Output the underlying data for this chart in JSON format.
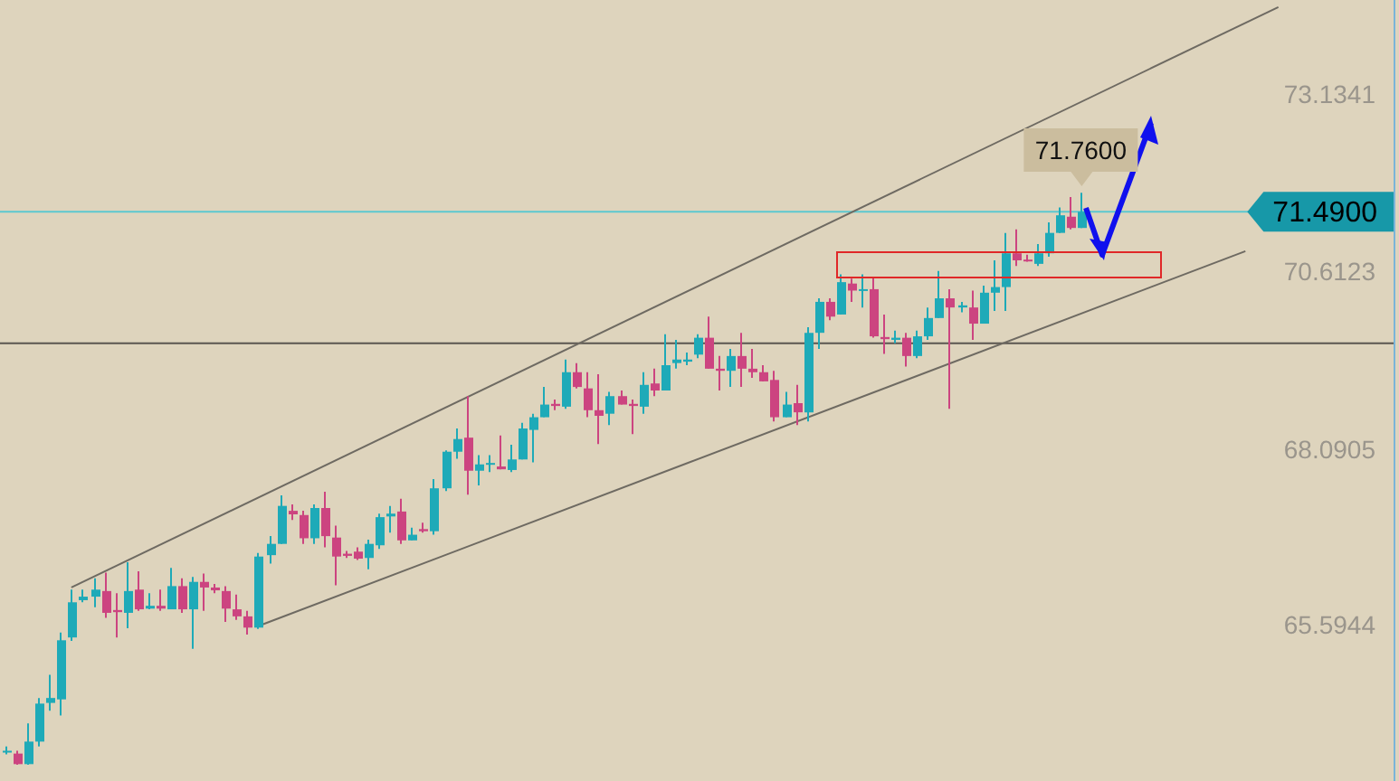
{
  "chart_data": {
    "type": "candlestick",
    "tick_labels": "y",
    "ylim": [
      63.4,
      74.5
    ],
    "yticks": [
      65.5944,
      68.0905,
      70.6123,
      73.1341
    ],
    "categories": [
      null,
      null,
      null,
      null,
      null,
      null,
      null,
      null,
      null,
      null,
      null,
      null,
      null,
      null,
      null,
      null,
      null,
      null,
      null,
      null,
      null,
      null,
      null,
      null,
      null,
      null,
      null,
      null,
      null,
      null,
      null,
      null,
      null,
      null,
      null,
      null,
      null,
      null,
      null,
      null,
      null,
      null,
      null,
      null,
      null,
      null,
      null,
      null,
      null,
      null,
      null,
      null,
      null,
      null,
      null,
      null,
      null,
      null,
      null,
      null,
      null,
      null,
      null,
      null,
      null,
      null,
      null,
      null,
      null,
      null,
      null,
      null,
      null,
      null,
      null,
      null,
      null,
      null,
      null,
      null,
      null,
      null,
      null,
      null,
      null,
      null,
      null,
      null,
      null,
      null,
      null,
      null,
      null,
      null,
      null,
      null,
      null,
      null,
      null,
      null,
      null,
      null,
      null,
      null,
      null,
      null,
      null,
      null,
      null,
      null,
      null,
      null,
      null,
      null,
      null,
      null,
      null,
      null,
      null,
      null,
      null,
      null,
      null,
      null,
      null,
      null,
      null
    ],
    "ohlc": [
      [
        63.83,
        63.89,
        63.78,
        63.83
      ],
      [
        63.79,
        63.83,
        63.63,
        63.64
      ],
      [
        63.64,
        64.22,
        63.63,
        63.96
      ],
      [
        63.96,
        64.58,
        63.89,
        64.5
      ],
      [
        64.51,
        64.91,
        64.4,
        64.58
      ],
      [
        64.56,
        65.51,
        64.33,
        65.4
      ],
      [
        65.44,
        66.12,
        65.39,
        65.94
      ],
      [
        65.97,
        66.12,
        65.94,
        66.02
      ],
      [
        66.02,
        66.28,
        65.87,
        66.12
      ],
      [
        66.1,
        66.36,
        65.72,
        65.79
      ],
      [
        65.83,
        66.07,
        65.44,
        65.8
      ],
      [
        65.79,
        66.51,
        65.57,
        66.1
      ],
      [
        66.12,
        66.38,
        65.82,
        65.84
      ],
      [
        65.85,
        66.07,
        65.84,
        65.89
      ],
      [
        65.89,
        66.12,
        65.82,
        65.85
      ],
      [
        65.84,
        66.43,
        65.84,
        66.17
      ],
      [
        66.17,
        66.28,
        65.79,
        65.84
      ],
      [
        65.84,
        66.3,
        65.28,
        66.23
      ],
      [
        66.23,
        66.35,
        65.82,
        66.15
      ],
      [
        66.15,
        66.2,
        66.07,
        66.11
      ],
      [
        66.1,
        66.17,
        65.66,
        65.85
      ],
      [
        65.84,
        66.05,
        65.69,
        65.74
      ],
      [
        65.74,
        65.82,
        65.48,
        65.58
      ],
      [
        65.58,
        66.64,
        65.56,
        66.59
      ],
      [
        66.61,
        66.88,
        66.49,
        66.77
      ],
      [
        66.77,
        67.46,
        66.77,
        67.31
      ],
      [
        67.24,
        67.33,
        67.11,
        67.19
      ],
      [
        67.18,
        67.24,
        66.77,
        66.85
      ],
      [
        66.85,
        67.33,
        66.77,
        67.28
      ],
      [
        67.28,
        67.51,
        66.72,
        66.88
      ],
      [
        66.86,
        67.03,
        66.18,
        66.59
      ],
      [
        66.63,
        66.67,
        66.57,
        66.6
      ],
      [
        66.66,
        66.72,
        66.54,
        66.56
      ],
      [
        66.57,
        66.83,
        66.41,
        66.77
      ],
      [
        66.75,
        67.2,
        66.7,
        67.15
      ],
      [
        67.16,
        67.31,
        66.93,
        67.2
      ],
      [
        67.23,
        67.41,
        66.77,
        66.82
      ],
      [
        66.82,
        67.0,
        66.82,
        66.9
      ],
      [
        66.98,
        67.07,
        66.93,
        66.95
      ],
      [
        66.95,
        67.69,
        66.9,
        67.56
      ],
      [
        67.56,
        68.1,
        67.52,
        68.08
      ],
      [
        68.08,
        68.41,
        67.98,
        68.26
      ],
      [
        68.28,
        68.87,
        67.47,
        67.81
      ],
      [
        67.81,
        68.03,
        67.6,
        67.9
      ],
      [
        67.9,
        68.03,
        67.79,
        67.92
      ],
      [
        67.87,
        68.31,
        67.83,
        67.83
      ],
      [
        67.82,
        68.18,
        67.79,
        67.97
      ],
      [
        67.97,
        68.49,
        67.97,
        68.41
      ],
      [
        68.39,
        68.62,
        67.93,
        68.57
      ],
      [
        68.57,
        69.0,
        68.57,
        68.75
      ],
      [
        68.76,
        68.82,
        68.67,
        68.73
      ],
      [
        68.72,
        69.39,
        68.69,
        69.21
      ],
      [
        69.21,
        69.34,
        68.98,
        69.0
      ],
      [
        68.98,
        69.21,
        68.57,
        68.67
      ],
      [
        68.67,
        69.18,
        68.19,
        68.59
      ],
      [
        68.62,
        68.93,
        68.46,
        68.87
      ],
      [
        68.87,
        68.95,
        68.75,
        68.75
      ],
      [
        68.76,
        68.82,
        68.33,
        68.73
      ],
      [
        68.72,
        69.21,
        68.62,
        69.03
      ],
      [
        69.05,
        69.26,
        68.87,
        68.95
      ],
      [
        68.95,
        69.75,
        68.95,
        69.31
      ],
      [
        69.34,
        69.67,
        69.26,
        69.39
      ],
      [
        69.36,
        69.49,
        69.31,
        69.39
      ],
      [
        69.46,
        69.75,
        69.41,
        69.7
      ],
      [
        69.7,
        70.0,
        69.26,
        69.26
      ],
      [
        69.26,
        69.44,
        68.95,
        69.23
      ],
      [
        69.23,
        69.54,
        69.0,
        69.44
      ],
      [
        69.44,
        69.77,
        69.0,
        69.26
      ],
      [
        69.26,
        69.54,
        69.13,
        69.21
      ],
      [
        69.21,
        69.31,
        69.08,
        69.08
      ],
      [
        69.1,
        69.23,
        68.51,
        68.57
      ],
      [
        68.57,
        68.93,
        68.57,
        68.75
      ],
      [
        68.77,
        69.03,
        68.46,
        68.64
      ],
      [
        68.64,
        69.85,
        68.51,
        69.77
      ],
      [
        69.77,
        70.26,
        69.54,
        70.21
      ],
      [
        70.21,
        70.26,
        69.95,
        70.0
      ],
      [
        70.03,
        70.6,
        70.03,
        70.49
      ],
      [
        70.47,
        70.54,
        70.21,
        70.37
      ],
      [
        70.37,
        70.6,
        70.13,
        70.39
      ],
      [
        70.39,
        70.57,
        69.7,
        69.72
      ],
      [
        69.71,
        70.03,
        69.47,
        69.68
      ],
      [
        69.67,
        69.8,
        69.62,
        69.7
      ],
      [
        69.7,
        69.77,
        69.29,
        69.44
      ],
      [
        69.44,
        69.8,
        69.41,
        69.72
      ],
      [
        69.72,
        70.13,
        69.67,
        69.98
      ],
      [
        69.98,
        70.65,
        69.98,
        70.26
      ],
      [
        70.26,
        70.39,
        68.69,
        70.13
      ],
      [
        70.13,
        70.21,
        70.06,
        70.16
      ],
      [
        70.13,
        70.37,
        69.67,
        69.9
      ],
      [
        69.9,
        70.44,
        69.9,
        70.34
      ],
      [
        70.34,
        70.8,
        70.08,
        70.42
      ],
      [
        70.42,
        71.19,
        70.08,
        70.9
      ],
      [
        70.9,
        71.24,
        70.72,
        70.8
      ],
      [
        70.81,
        70.88,
        70.78,
        70.79
      ],
      [
        70.75,
        71.03,
        70.72,
        70.9
      ],
      [
        70.9,
        71.34,
        70.85,
        71.19
      ],
      [
        71.19,
        71.55,
        71.19,
        71.44
      ],
      [
        71.42,
        71.7,
        71.24,
        71.26
      ],
      [
        71.26,
        71.76,
        71.26,
        71.49
      ],
      null,
      null,
      null,
      null,
      null,
      null,
      null,
      null,
      null,
      null,
      null,
      null,
      null,
      null,
      null,
      null,
      null,
      null,
      null,
      null,
      null,
      null,
      null,
      null,
      null,
      null,
      null,
      null
    ],
    "colors": [
      "#1eaab8",
      "#cc4480",
      "#1eaab8",
      "#1eaab8",
      "#1eaab8",
      "#1eaab8",
      "#1eaab8",
      "#1eaab8",
      "#1eaab8",
      "#cc4480",
      "#cc4480",
      "#1eaab8",
      "#cc4480",
      "#1eaab8",
      "#cc4480",
      "#1eaab8",
      "#cc4480",
      "#1eaab8",
      "#cc4480",
      "#cc4480",
      "#cc4480",
      "#cc4480",
      "#cc4480",
      "#1eaab8",
      "#1eaab8",
      "#1eaab8",
      "#cc4480",
      "#cc4480",
      "#1eaab8",
      "#cc4480",
      "#cc4480",
      "#cc4480",
      "#cc4480",
      "#1eaab8",
      "#1eaab8",
      "#1eaab8",
      "#cc4480",
      "#1eaab8",
      "#cc4480",
      "#1eaab8",
      "#1eaab8",
      "#1eaab8",
      "#cc4480",
      "#1eaab8",
      "#1eaab8",
      "#cc4480",
      "#1eaab8",
      "#1eaab8",
      "#1eaab8",
      "#1eaab8",
      "#cc4480",
      "#1eaab8",
      "#cc4480",
      "#cc4480",
      "#cc4480",
      "#1eaab8",
      "#cc4480",
      "#cc4480",
      "#1eaab8",
      "#cc4480",
      "#1eaab8",
      "#1eaab8",
      "#1eaab8",
      "#1eaab8",
      "#cc4480",
      "#cc4480",
      "#1eaab8",
      "#cc4480",
      "#cc4480",
      "#cc4480",
      "#cc4480",
      "#1eaab8",
      "#cc4480",
      "#1eaab8",
      "#1eaab8",
      "#cc4480",
      "#1eaab8",
      "#cc4480",
      "#1eaab8",
      "#cc4480",
      "#cc4480",
      "#1eaab8",
      "#cc4480",
      "#1eaab8",
      "#1eaab8",
      "#1eaab8",
      "#cc4480",
      "#1eaab8",
      "#cc4480",
      "#1eaab8",
      "#1eaab8",
      "#1eaab8",
      "#cc4480",
      "#cc4480",
      "#1eaab8",
      "#1eaab8",
      "#1eaab8",
      "#cc4480",
      "#1eaab8",
      null,
      null,
      null,
      null,
      null,
      null,
      null,
      null,
      null,
      null,
      null,
      null,
      null,
      null,
      null,
      null,
      null,
      null,
      null,
      null,
      null,
      null,
      null,
      null,
      null,
      null,
      null,
      null
    ],
    "series": [
      {
        "type": "line",
        "values": [
          null,
          null,
          null,
          null,
          null,
          null,
          66.15,
          null,
          null,
          null,
          null,
          null,
          null,
          null,
          null,
          null,
          null,
          null,
          null,
          null,
          null,
          null,
          null,
          null,
          null,
          null,
          null,
          null,
          null,
          null,
          null,
          null,
          null,
          null,
          null,
          null,
          null,
          null,
          null,
          null,
          null,
          null,
          null,
          null,
          null,
          null,
          null,
          null,
          null,
          null,
          null,
          null,
          null,
          null,
          null,
          null,
          null,
          null,
          null,
          null,
          null,
          null,
          null,
          null,
          null,
          null,
          null,
          null,
          null,
          null,
          null,
          null,
          null,
          null,
          null,
          null,
          null,
          null,
          null,
          null,
          null,
          null,
          null,
          null,
          null,
          null,
          null,
          null,
          null,
          null,
          null,
          null,
          null,
          null,
          null,
          null,
          null,
          null,
          null,
          null,
          null,
          null,
          null,
          null,
          null,
          null,
          null,
          null,
          null,
          null,
          null,
          null,
          null,
          null,
          null,
          null,
          74.4,
          null,
          null,
          null,
          null,
          null,
          null,
          null,
          null,
          null,
          null
        ],
        "color": "#6e6a62"
      },
      {
        "type": "line",
        "values": [
          null,
          null,
          null,
          null,
          null,
          null,
          null,
          null,
          null,
          null,
          null,
          null,
          null,
          null,
          null,
          null,
          null,
          null,
          null,
          null,
          null,
          null,
          null,
          65.6,
          null,
          null,
          null,
          null,
          null,
          null,
          null,
          null,
          null,
          null,
          null,
          null,
          null,
          null,
          null,
          null,
          null,
          null,
          null,
          null,
          null,
          null,
          null,
          null,
          null,
          null,
          null,
          null,
          null,
          null,
          null,
          null,
          null,
          null,
          null,
          null,
          null,
          null,
          null,
          null,
          null,
          null,
          null,
          null,
          null,
          null,
          null,
          null,
          null,
          null,
          null,
          null,
          null,
          null,
          null,
          null,
          null,
          null,
          null,
          null,
          null,
          null,
          null,
          null,
          null,
          null,
          null,
          null,
          null,
          null,
          null,
          null,
          null,
          null,
          null,
          null,
          null,
          null,
          null,
          null,
          null,
          null,
          null,
          null,
          null,
          null,
          null,
          null,
          null,
          70.93,
          null,
          null,
          null,
          null,
          null,
          null,
          null,
          null,
          null,
          null,
          null,
          null,
          null
        ],
        "color": "#6e6a62"
      }
    ],
    "ref_lines": [
      {
        "axis": "y",
        "value": 71.49,
        "label": "71.4900",
        "color": "#5cc8d0"
      },
      {
        "axis": "y",
        "value": 69.62,
        "color": "#5a5650"
      }
    ],
    "annotations": [
      "71.7600"
    ]
  }
}
